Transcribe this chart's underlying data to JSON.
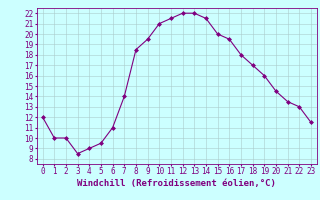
{
  "x": [
    0,
    1,
    2,
    3,
    4,
    5,
    6,
    7,
    8,
    9,
    10,
    11,
    12,
    13,
    14,
    15,
    16,
    17,
    18,
    19,
    20,
    21,
    22,
    23
  ],
  "y": [
    12,
    10,
    10,
    8.5,
    9,
    9.5,
    11,
    14,
    18.5,
    19.5,
    21,
    21.5,
    22,
    22,
    21.5,
    20,
    19.5,
    18,
    17,
    16,
    14.5,
    13.5,
    13,
    11.5
  ],
  "line_color": "#800080",
  "marker": "D",
  "marker_size": 2.0,
  "background_color": "#ccffff",
  "grid_color": "#aacccc",
  "xlabel": "Windchill (Refroidissement éolien,°C)",
  "xlabel_color": "#800080",
  "xlim": [
    -0.5,
    23.5
  ],
  "ylim": [
    7.5,
    22.5
  ],
  "xticks": [
    0,
    1,
    2,
    3,
    4,
    5,
    6,
    7,
    8,
    9,
    10,
    11,
    12,
    13,
    14,
    15,
    16,
    17,
    18,
    19,
    20,
    21,
    22,
    23
  ],
  "yticks": [
    8,
    9,
    10,
    11,
    12,
    13,
    14,
    15,
    16,
    17,
    18,
    19,
    20,
    21,
    22
  ],
  "tick_fontsize": 5.5,
  "xlabel_fontsize": 6.5,
  "spine_color": "#800080",
  "linewidth": 0.8
}
